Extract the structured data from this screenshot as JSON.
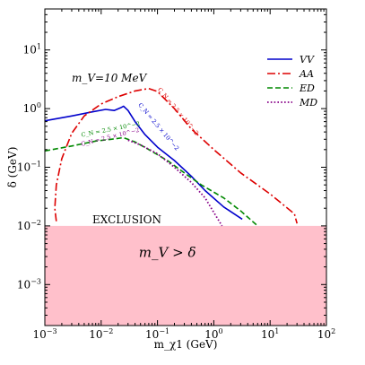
{
  "chart_data": {
    "type": "line",
    "xlabel": "m_χ1 (GeV)",
    "ylabel": "δ (GeV)",
    "xscale": "log",
    "yscale": "log",
    "xlim": [
      0.001,
      100
    ],
    "ylim": [
      0.0002,
      50
    ],
    "x_ticks": [
      {
        "value": 0.001,
        "base": "10",
        "exp": "−3"
      },
      {
        "value": 0.01,
        "base": "10",
        "exp": "−2"
      },
      {
        "value": 0.1,
        "base": "10",
        "exp": "−1"
      },
      {
        "value": 1,
        "base": "10",
        "exp": "0"
      },
      {
        "value": 10,
        "base": "10",
        "exp": "1"
      },
      {
        "value": 100,
        "base": "10",
        "exp": "2"
      }
    ],
    "y_ticks": [
      {
        "value": 0.001,
        "base": "10",
        "exp": "−3"
      },
      {
        "value": 0.01,
        "base": "10",
        "exp": "−2"
      },
      {
        "value": 0.1,
        "base": "10",
        "exp": "−1"
      },
      {
        "value": 1,
        "base": "10",
        "exp": "0"
      },
      {
        "value": 10,
        "base": "10",
        "exp": "1"
      }
    ],
    "shaded_region": {
      "y_from": 0.0002,
      "y_to": 0.01,
      "color": "#ffc0cb",
      "label": "m_V > δ"
    },
    "annotations": {
      "mass_label": "m_V=10 MeV",
      "exclusion_label": "EXCLUSION",
      "cn_vv": "C_N = 2.5 × 10^−2",
      "cn_aa": "C_N = 2.5 × 10^−2",
      "cn_ed": "C_N = 2.5 × 10^−2",
      "cn_md": "C_N = 2.5 × 10^−2"
    },
    "legend_position": "top-right",
    "series": [
      {
        "name": "VV",
        "color": "#0000cc",
        "dash": "solid",
        "points": [
          [
            0.001,
            0.62
          ],
          [
            0.003,
            0.75
          ],
          [
            0.007,
            0.88
          ],
          [
            0.012,
            0.97
          ],
          [
            0.017,
            0.93
          ],
          [
            0.022,
            1.03
          ],
          [
            0.025,
            1.1
          ],
          [
            0.03,
            0.93
          ],
          [
            0.04,
            0.6
          ],
          [
            0.06,
            0.36
          ],
          [
            0.1,
            0.22
          ],
          [
            0.2,
            0.13
          ],
          [
            0.4,
            0.07
          ],
          [
            0.7,
            0.04
          ],
          [
            1.5,
            0.021
          ],
          [
            3.2,
            0.013
          ]
        ]
      },
      {
        "name": "AA",
        "color": "#dd0000",
        "dash": "dashdot",
        "points": [
          [
            0.0016,
            0.012
          ],
          [
            0.0015,
            0.02
          ],
          [
            0.0016,
            0.05
          ],
          [
            0.002,
            0.14
          ],
          [
            0.003,
            0.38
          ],
          [
            0.005,
            0.75
          ],
          [
            0.01,
            1.2
          ],
          [
            0.02,
            1.6
          ],
          [
            0.04,
            2.0
          ],
          [
            0.07,
            2.2
          ],
          [
            0.1,
            1.95
          ],
          [
            0.2,
            1.0
          ],
          [
            0.4,
            0.45
          ],
          [
            1,
            0.2
          ],
          [
            3,
            0.08
          ],
          [
            10,
            0.035
          ],
          [
            27,
            0.016
          ],
          [
            30,
            0.011
          ]
        ]
      },
      {
        "name": "ED",
        "color": "#008800",
        "dash": "dashed",
        "points": [
          [
            0.001,
            0.19
          ],
          [
            0.003,
            0.23
          ],
          [
            0.008,
            0.28
          ],
          [
            0.015,
            0.3
          ],
          [
            0.025,
            0.32
          ],
          [
            0.04,
            0.27
          ],
          [
            0.07,
            0.2
          ],
          [
            0.15,
            0.13
          ],
          [
            0.3,
            0.08
          ],
          [
            0.6,
            0.05
          ],
          [
            1.5,
            0.03
          ],
          [
            3,
            0.018
          ],
          [
            6,
            0.01
          ]
        ]
      },
      {
        "name": "MD",
        "color": "#880088",
        "dash": "dotted",
        "points": [
          [
            0.03,
            0.29
          ],
          [
            0.05,
            0.24
          ],
          [
            0.1,
            0.17
          ],
          [
            0.2,
            0.1
          ],
          [
            0.4,
            0.055
          ],
          [
            0.7,
            0.03
          ],
          [
            1,
            0.017
          ],
          [
            1.4,
            0.01
          ]
        ]
      }
    ]
  }
}
